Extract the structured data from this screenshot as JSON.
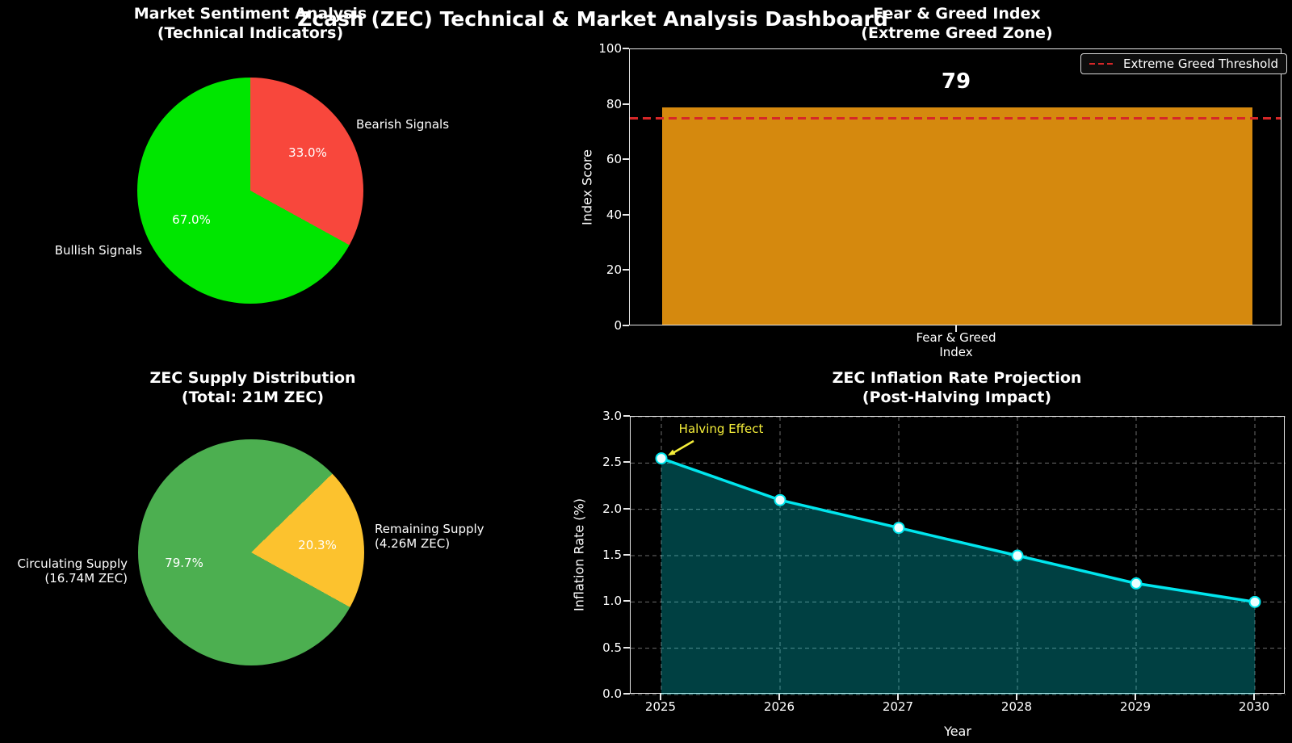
{
  "suptitle": "Zcash (ZEC) Technical & Market Analysis Dashboard",
  "colors": {
    "background": "#000000",
    "text": "#ffffff",
    "spine": "#e8e8e8",
    "grid": "rgba(255,255,255,0.42)"
  },
  "chart_data": [
    {
      "id": "sentiment",
      "type": "pie",
      "title_lines": [
        "Market Sentiment Analysis",
        "(Technical Indicators)"
      ],
      "start_css_deg": 0,
      "slices": [
        {
          "label": "Bearish Signals",
          "value": 33.0,
          "display": "33.0%",
          "color": "#f8473c"
        },
        {
          "label": "Bullish Signals",
          "value": 67.0,
          "display": "67.0%",
          "color": "#00e600"
        }
      ]
    },
    {
      "id": "fear-greed",
      "type": "bar",
      "title_lines": [
        "Fear & Greed Index",
        "(Extreme Greed Zone)"
      ],
      "category_lines": [
        "Fear & Greed",
        "Index"
      ],
      "values": [
        79
      ],
      "value_label": "79",
      "ylabel": "Index Score",
      "ylim": [
        0,
        100
      ],
      "yticks": [
        0,
        20,
        40,
        60,
        80,
        100
      ],
      "bar_color": "#d5890e",
      "threshold": {
        "value": 75,
        "label": "Extreme Greed Threshold",
        "color": "#d62728"
      }
    },
    {
      "id": "supply",
      "type": "pie",
      "title_lines": [
        "ZEC Supply Distribution",
        "(Total: 21M ZEC)"
      ],
      "start_css_deg": 45.9,
      "slices": [
        {
          "label_lines": [
            "Remaining Supply",
            "(4.26M ZEC)"
          ],
          "value": 20.3,
          "display": "20.3%",
          "color": "#fcc22e"
        },
        {
          "label_lines": [
            "Circulating Supply",
            "(16.74M ZEC)"
          ],
          "value": 79.7,
          "display": "79.7%",
          "color": "#4caf50"
        }
      ]
    },
    {
      "id": "inflation",
      "type": "line",
      "title_lines": [
        "ZEC Inflation Rate Projection",
        "(Post-Halving Impact)"
      ],
      "x": [
        2025,
        2026,
        2027,
        2028,
        2029,
        2030
      ],
      "y": [
        2.55,
        2.1,
        1.8,
        1.5,
        1.2,
        1.0
      ],
      "xlabel": "Year",
      "ylabel": "Inflation Rate (%)",
      "ylim": [
        0.0,
        3.0
      ],
      "yticks": [
        "0.0",
        "0.5",
        "1.0",
        "1.5",
        "2.0",
        "2.5",
        "3.0"
      ],
      "grid": true,
      "line_color": "#00e6ee",
      "fill_color": "rgba(0,230,238,0.28)",
      "marker_fill": "#ecfeff",
      "annotation": {
        "text": "Halving Effect",
        "color": "#f5ee3a"
      }
    }
  ]
}
